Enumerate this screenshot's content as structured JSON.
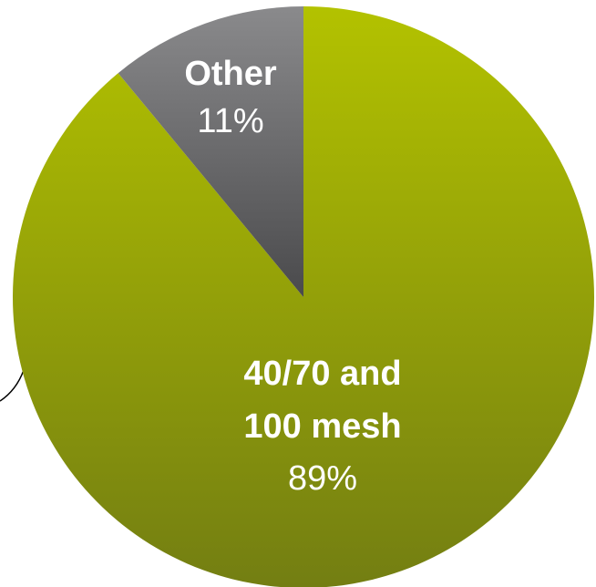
{
  "chart_data": {
    "type": "pie",
    "slices": [
      {
        "label_lines": [
          "40/70 and",
          "100 mesh"
        ],
        "value": 89,
        "value_label": "89%",
        "color": "#9aaa10"
      },
      {
        "label_lines": [
          "Other"
        ],
        "value": 11,
        "value_label": "11%",
        "color": "#6e6e70"
      }
    ],
    "start_angle_deg": 0,
    "direction": "clockwise",
    "legend": "none",
    "colors": {
      "main_gradient_top": "#b3c200",
      "main_gradient_bottom": "#737e12",
      "other_gradient_top": "#8a8a8c",
      "other_gradient_bottom": "#4a4a4c",
      "label_text": "#ffffff"
    }
  }
}
